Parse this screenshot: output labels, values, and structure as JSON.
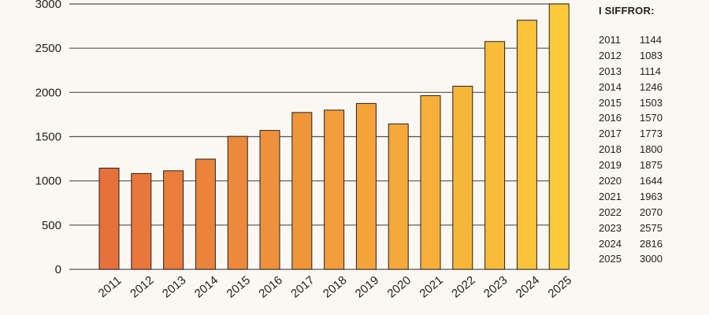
{
  "chart_data": {
    "type": "bar",
    "title": "",
    "xlabel": "",
    "ylabel": "",
    "ylim": [
      0,
      3000
    ],
    "yticks": [
      0,
      500,
      1000,
      1500,
      2000,
      2500,
      3000
    ],
    "categories": [
      "2011",
      "2012",
      "2013",
      "2014",
      "2015",
      "2016",
      "2017",
      "2018",
      "2019",
      "2020",
      "2021",
      "2022",
      "2023",
      "2024",
      "2025"
    ],
    "values": [
      1144,
      1083,
      1114,
      1246,
      1503,
      1570,
      1773,
      1800,
      1875,
      1644,
      1963,
      2070,
      2575,
      2816,
      3000
    ],
    "grid": "horizontal",
    "colors": {
      "start": "#e8703a",
      "end": "#fbc93a",
      "axis": "#555555"
    }
  },
  "side_table": {
    "title": "I SIFFROR:",
    "rows": [
      {
        "year": "2011",
        "value": "1144"
      },
      {
        "year": "2012",
        "value": "1083"
      },
      {
        "year": "2013",
        "value": "1114"
      },
      {
        "year": "2014",
        "value": "1246"
      },
      {
        "year": "2015",
        "value": "1503"
      },
      {
        "year": "2016",
        "value": "1570"
      },
      {
        "year": "2017",
        "value": "1773"
      },
      {
        "year": "2018",
        "value": "1800"
      },
      {
        "year": "2019",
        "value": "1875"
      },
      {
        "year": "2020",
        "value": "1644"
      },
      {
        "year": "2021",
        "value": "1963"
      },
      {
        "year": "2022",
        "value": "2070"
      },
      {
        "year": "2023",
        "value": "2575"
      },
      {
        "year": "2024",
        "value": "2816"
      },
      {
        "year": "2025",
        "value": "3000"
      }
    ]
  }
}
